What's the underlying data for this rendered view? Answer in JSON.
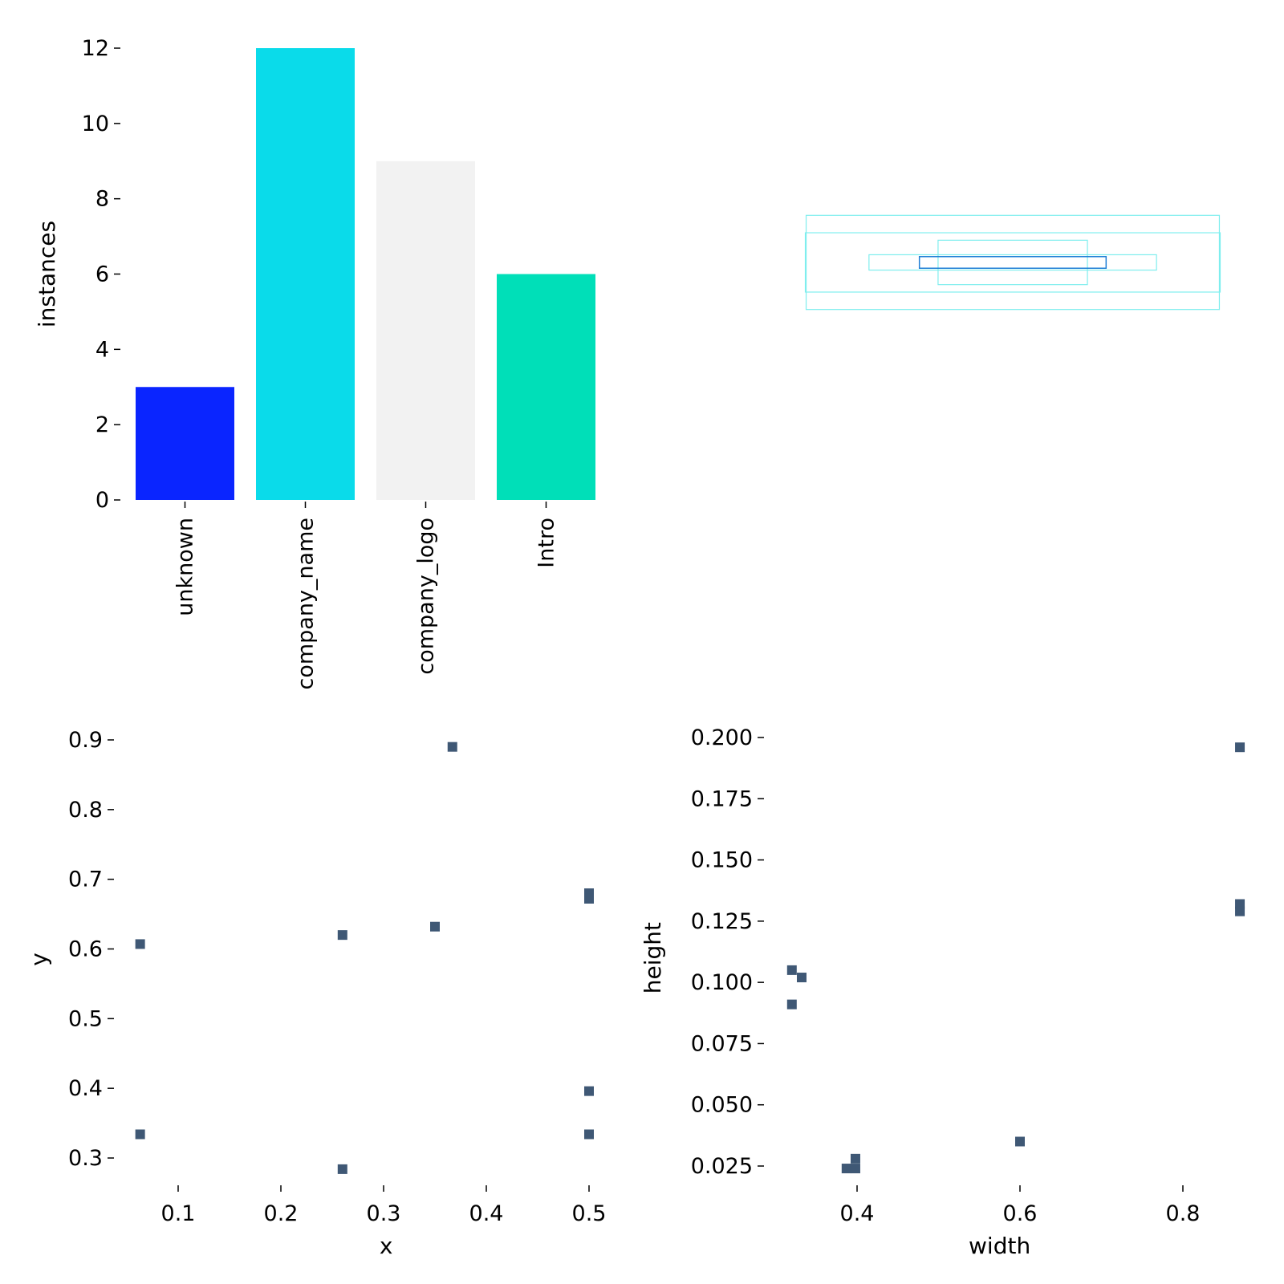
{
  "chart_data": [
    {
      "type": "bar",
      "panel": "top-left",
      "categories": [
        "unknown",
        "company_name",
        "company_logo",
        "Intro"
      ],
      "values": [
        3,
        12,
        9,
        6
      ],
      "colors": [
        "#0a25ff",
        "#0adbea",
        "#f2f2f2",
        "#00dfb8"
      ],
      "xlabel": "",
      "ylabel": "instances",
      "ylim": [
        0,
        12
      ],
      "yticks": [
        0,
        2,
        4,
        6,
        8,
        10,
        12
      ],
      "grid": false
    },
    {
      "type": "boxes",
      "panel": "top-right",
      "note_boxes": [
        {
          "width": 0.996,
          "height": 0.227,
          "color": "#7feeee"
        },
        {
          "width": 1.0,
          "height": 0.143,
          "color": "#7feeee"
        },
        {
          "width": 0.693,
          "height": 0.037,
          "color": "#7feeee"
        },
        {
          "width": 0.36,
          "height": 0.107,
          "color": "#7feeee"
        },
        {
          "width": 0.45,
          "height": 0.028,
          "color": "#1f7fd6"
        }
      ]
    },
    {
      "type": "scatter",
      "panel": "bottom-left",
      "xlabel": "x",
      "ylabel": "y",
      "xlim": [
        0.045,
        0.56
      ],
      "ylim": [
        0.25,
        0.92
      ],
      "xticks": [
        0.1,
        0.2,
        0.3,
        0.4,
        0.5
      ],
      "yticks": [
        0.3,
        0.4,
        0.5,
        0.6,
        0.7,
        0.8,
        0.9
      ],
      "marker_color": "#3f5875",
      "points": [
        {
          "x": 0.367,
          "y": 0.89
        },
        {
          "x": 0.5,
          "y": 0.68
        },
        {
          "x": 0.5,
          "y": 0.672
        },
        {
          "x": 0.35,
          "y": 0.632
        },
        {
          "x": 0.26,
          "y": 0.62
        },
        {
          "x": 0.063,
          "y": 0.607
        },
        {
          "x": 0.5,
          "y": 0.396
        },
        {
          "x": 0.063,
          "y": 0.334
        },
        {
          "x": 0.5,
          "y": 0.334
        },
        {
          "x": 0.26,
          "y": 0.284
        }
      ]
    },
    {
      "type": "scatter",
      "panel": "bottom-right",
      "xlabel": "width",
      "ylabel": "height",
      "xlim": [
        0.27,
        0.88
      ],
      "ylim": [
        0.02,
        0.2
      ],
      "xticks": [
        0.4,
        0.6,
        0.8
      ],
      "yticks": [
        0.025,
        0.05,
        0.075,
        0.1,
        0.125,
        0.15,
        0.175,
        0.2
      ],
      "ytick_labels": [
        "0.025",
        "0.050",
        "0.075",
        "0.100",
        "0.125",
        "0.150",
        "0.175",
        "0.200"
      ],
      "marker_color": "#3f5875",
      "points": [
        {
          "x": 0.87,
          "y": 0.196
        },
        {
          "x": 0.87,
          "y": 0.132
        },
        {
          "x": 0.87,
          "y": 0.129
        },
        {
          "x": 0.32,
          "y": 0.105
        },
        {
          "x": 0.332,
          "y": 0.102
        },
        {
          "x": 0.32,
          "y": 0.091
        },
        {
          "x": 0.6,
          "y": 0.035
        },
        {
          "x": 0.398,
          "y": 0.028
        },
        {
          "x": 0.398,
          "y": 0.024
        },
        {
          "x": 0.387,
          "y": 0.024
        }
      ]
    }
  ]
}
